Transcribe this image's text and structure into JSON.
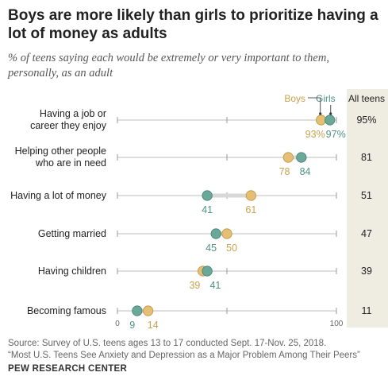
{
  "title": "Boys are more likely than girls to prioritize having a lot of money as adults",
  "subtitle": "% of teens saying each would be extremely or very important to them, personally, as an adult",
  "source_line1": "Source: Survey of U.S. teens ages 13 to 17 conducted Sept. 17-Nov. 25, 2018.",
  "source_line2": "“Most U.S. Teens See Anxiety and Depression as a Major Problem Among Their Peers”",
  "brand": "PEW RESEARCH CENTER",
  "colors": {
    "boys": "#e5c074",
    "girls": "#6aa89a",
    "all_col_bg": "#efece1",
    "line": "#bdbdbd"
  },
  "chart_data": {
    "type": "dot",
    "xlim": [
      0,
      100
    ],
    "x_ticks": [
      "0",
      "100"
    ],
    "legend": {
      "boys": "Boys",
      "girls": "Girls",
      "all": "All teens"
    },
    "categories": [
      "Having a job or career they enjoy",
      "Helping other people who are in need",
      "Having a lot of money",
      "Getting married",
      "Having children",
      "Becoming famous"
    ],
    "category_lines": [
      [
        "Having a job or",
        "career they enjoy"
      ],
      [
        "Helping other people",
        "who are in need"
      ],
      [
        "Having a lot of money"
      ],
      [
        "Getting married"
      ],
      [
        "Having children"
      ],
      [
        "Becoming famous"
      ]
    ],
    "series": [
      {
        "name": "Boys",
        "values": [
          93,
          78,
          61,
          50,
          39,
          14
        ],
        "labels": [
          "93%",
          "78",
          "61",
          "50",
          "39",
          "14"
        ]
      },
      {
        "name": "Girls",
        "values": [
          97,
          84,
          41,
          45,
          41,
          9
        ],
        "labels": [
          "97%",
          "84",
          "41",
          "45",
          "41",
          "9"
        ]
      }
    ],
    "all_teens": [
      "95%",
      "81",
      "51",
      "47",
      "39",
      "11"
    ]
  }
}
